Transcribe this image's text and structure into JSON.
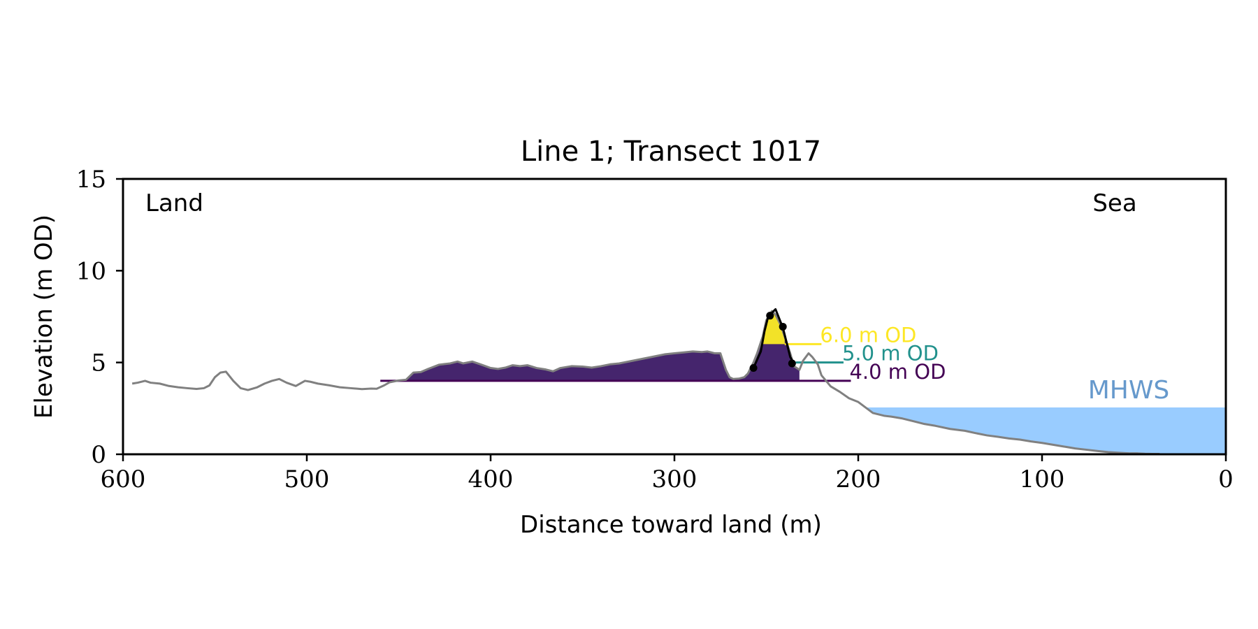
{
  "chart_data": {
    "type": "area",
    "title": "Line 1; Transect 1017",
    "xlabel": "Distance toward land (m)",
    "ylabel": "Elevation (m OD)",
    "xlim": [
      600,
      0
    ],
    "ylim": [
      0,
      15
    ],
    "xticks": [
      600,
      500,
      400,
      300,
      200,
      100,
      0
    ],
    "yticks": [
      0,
      5,
      10,
      15
    ],
    "xtick_labels": [
      "600",
      "500",
      "400",
      "300",
      "200",
      "100",
      "0"
    ],
    "ytick_labels": [
      "0",
      "5",
      "10",
      "15"
    ],
    "grid": false,
    "corner_labels": {
      "left": "Land",
      "right": "Sea"
    },
    "profile": {
      "color": "#808080",
      "x": [
        595,
        592,
        588,
        585,
        580,
        575,
        570,
        565,
        560,
        556,
        553,
        550,
        547,
        544,
        540,
        536,
        532,
        527,
        523,
        519,
        515,
        511,
        506,
        501,
        498,
        494,
        488,
        482,
        476,
        470,
        465,
        462,
        458,
        455,
        450,
        446,
        442,
        438,
        434,
        428,
        422,
        418,
        415,
        410,
        405,
        400,
        396,
        392,
        388,
        384,
        380,
        375,
        370,
        366,
        362,
        356,
        350,
        345,
        340,
        335,
        330,
        325,
        320,
        315,
        310,
        305,
        300,
        295,
        290,
        285,
        282,
        278,
        275,
        272,
        270,
        268,
        265,
        262,
        260,
        257,
        255,
        252,
        250,
        247,
        245,
        242,
        240,
        237,
        235,
        232,
        230,
        227,
        225,
        222,
        220,
        215,
        210,
        205,
        200,
        196,
        192,
        186,
        182,
        176,
        170,
        164,
        158,
        150,
        142,
        136,
        130,
        124,
        118,
        112,
        106,
        100,
        94,
        88,
        82,
        76,
        70,
        64,
        58,
        52,
        48,
        44,
        40,
        36
      ],
      "y": [
        3.85,
        3.9,
        4.0,
        3.9,
        3.85,
        3.72,
        3.65,
        3.6,
        3.56,
        3.6,
        3.75,
        4.2,
        4.45,
        4.5,
        4.0,
        3.6,
        3.5,
        3.65,
        3.85,
        4.0,
        4.1,
        3.9,
        3.72,
        4.0,
        3.95,
        3.85,
        3.76,
        3.65,
        3.6,
        3.55,
        3.58,
        3.57,
        3.75,
        3.92,
        4.02,
        4.06,
        4.45,
        4.48,
        4.65,
        4.88,
        4.95,
        5.05,
        4.95,
        5.05,
        4.88,
        4.7,
        4.65,
        4.72,
        4.85,
        4.8,
        4.85,
        4.7,
        4.62,
        4.52,
        4.7,
        4.8,
        4.78,
        4.72,
        4.8,
        4.9,
        4.95,
        5.05,
        5.15,
        5.25,
        5.35,
        5.45,
        5.5,
        5.55,
        5.6,
        5.57,
        5.6,
        5.5,
        5.5,
        4.6,
        4.2,
        4.1,
        4.12,
        4.2,
        4.4,
        5.0,
        5.5,
        6.4,
        7.3,
        7.8,
        7.6,
        7.0,
        6.4,
        5.5,
        4.8,
        4.6,
        5.1,
        5.5,
        5.3,
        4.9,
        4.3,
        3.7,
        3.4,
        3.05,
        2.85,
        2.55,
        2.25,
        2.1,
        2.05,
        1.95,
        1.8,
        1.65,
        1.55,
        1.38,
        1.28,
        1.15,
        1.03,
        0.95,
        0.86,
        0.8,
        0.7,
        0.62,
        0.52,
        0.42,
        0.32,
        0.25,
        0.18,
        0.12,
        0.08,
        0.05,
        0.05,
        0.03,
        0.02,
        0.02
      ]
    },
    "fill_regions": [
      {
        "level": 4.0,
        "x_from": 460,
        "x_to": 232,
        "color": "#45256d"
      },
      {
        "level": 6.0,
        "x_from": 253,
        "x_to": 240,
        "color": "#f2e228"
      }
    ],
    "dune_crest": {
      "color": "#000000",
      "x": [
        257,
        253,
        251,
        249,
        247,
        245,
        243,
        241,
        239,
        237,
        235
      ],
      "y": [
        4.7,
        5.6,
        6.7,
        7.5,
        7.7,
        7.9,
        7.4,
        6.9,
        6.1,
        5.3,
        4.95
      ],
      "points_x": [
        257,
        248,
        241,
        236
      ],
      "points_y": [
        4.7,
        7.55,
        6.95,
        4.95
      ]
    },
    "water_levels": [
      {
        "label": "6.0 m OD",
        "value": 6.0,
        "color": "#fde725",
        "x_from": 240,
        "x_to": 220
      },
      {
        "label": "5.0 m OD",
        "value": 5.0,
        "color": "#21918c",
        "x_from": 234,
        "x_to": 208
      },
      {
        "label": "4.0 m OD",
        "value": 4.0,
        "color": "#440154",
        "x_from": 460,
        "x_to": 204
      }
    ],
    "mhws": {
      "label": "MHWS",
      "value": 2.55,
      "x_from": 200,
      "x_to": 0,
      "color": "#99ccff",
      "label_color": "#6699cc"
    }
  }
}
